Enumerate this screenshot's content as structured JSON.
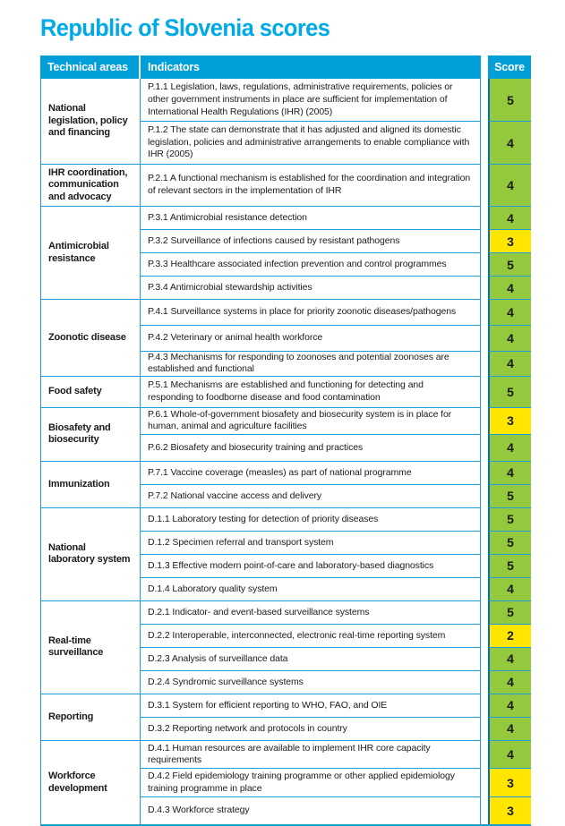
{
  "title": "Republic of Slovenia scores",
  "colors": {
    "title": "#00AAE7",
    "header_bg": "#009FD9",
    "border_cyan": "#1E9CD7",
    "score_border": "#0071BC",
    "green": "#94C83D",
    "yellow": "#FFE500"
  },
  "table": {
    "headers": {
      "technical_areas": "Technical areas",
      "indicators": "Indicators",
      "score": "Score"
    },
    "groups": [
      {
        "area": "National legislation, policy and financing",
        "rows": [
          {
            "indicator": "P.1.1 Legislation, laws, regulations, administrative requirements, policies or other government instruments in place are sufficient for implementation of International Health Regulations (IHR) (2005)",
            "score": "5",
            "level": "green"
          },
          {
            "indicator": "P.1.2 The state can demonstrate that it has adjusted and aligned its domestic legislation, policies and administrative arrangements to enable compliance with IHR (2005)",
            "score": "4",
            "level": "green"
          }
        ]
      },
      {
        "area": "IHR coordination, communication and advocacy",
        "rows": [
          {
            "indicator": "P.2.1 A functional mechanism is established for the coordination and integration of relevant sectors in the implementation of IHR",
            "score": "4",
            "level": "green"
          }
        ]
      },
      {
        "area": "Antimicrobial resistance",
        "rows": [
          {
            "indicator": "P.3.1 Antimicrobial resistance detection",
            "score": "4",
            "level": "green"
          },
          {
            "indicator": "P.3.2 Surveillance of infections caused by resistant pathogens",
            "score": "3",
            "level": "yellow"
          },
          {
            "indicator": "P.3.3 Healthcare associated infection prevention and control programmes",
            "score": "5",
            "level": "green"
          },
          {
            "indicator": "P.3.4 Antimicrobial stewardship activities",
            "score": "4",
            "level": "green"
          }
        ]
      },
      {
        "area": "Zoonotic disease",
        "rows": [
          {
            "indicator": "P.4.1 Surveillance systems in place for priority zoonotic diseases/pathogens",
            "score": "4",
            "level": "green"
          },
          {
            "indicator": "P.4.2 Veterinary or animal health workforce",
            "score": "4",
            "level": "green"
          },
          {
            "indicator": "P.4.3 Mechanisms for responding to zoonoses and potential zoonoses are established and functional",
            "score": "4",
            "level": "green"
          }
        ]
      },
      {
        "area": "Food safety",
        "rows": [
          {
            "indicator": "P.5.1 Mechanisms are established and functioning for detecting and responding to foodborne disease and food contamination",
            "score": "5",
            "level": "green"
          }
        ]
      },
      {
        "area": "Biosafety and biosecurity",
        "rows": [
          {
            "indicator": "P.6.1 Whole-of-government biosafety and biosecurity system is in place for human, animal and agriculture facilities",
            "score": "3",
            "level": "yellow"
          },
          {
            "indicator": "P.6.2 Biosafety and biosecurity training and practices",
            "score": "4",
            "level": "green"
          }
        ]
      },
      {
        "area": "Immunization",
        "rows": [
          {
            "indicator": "P.7.1 Vaccine coverage (measles) as part of national programme",
            "score": "4",
            "level": "green"
          },
          {
            "indicator": "P.7.2 National vaccine access and delivery",
            "score": "5",
            "level": "green"
          }
        ]
      },
      {
        "area": "National laboratory system",
        "rows": [
          {
            "indicator": "D.1.1 Laboratory testing for detection of priority diseases",
            "score": "5",
            "level": "green"
          },
          {
            "indicator": "D.1.2 Specimen referral and transport system",
            "score": "5",
            "level": "green"
          },
          {
            "indicator": "D.1.3 Effective modern point-of-care and laboratory-based diagnostics",
            "score": "5",
            "level": "green"
          },
          {
            "indicator": "D.1.4 Laboratory quality system",
            "score": "4",
            "level": "green"
          }
        ]
      },
      {
        "area": "Real-time surveillance",
        "rows": [
          {
            "indicator": "D.2.1 Indicator- and event-based surveillance systems",
            "score": "5",
            "level": "green"
          },
          {
            "indicator": "D.2.2 Interoperable, interconnected, electronic real-time reporting system",
            "score": "2",
            "level": "yellow"
          },
          {
            "indicator": "D.2.3 Analysis of surveillance data",
            "score": "4",
            "level": "green"
          },
          {
            "indicator": "D.2.4 Syndromic surveillance systems",
            "score": "4",
            "level": "green"
          }
        ]
      },
      {
        "area": "Reporting",
        "rows": [
          {
            "indicator": "D.3.1 System for efficient reporting to WHO, FAO, and OIE",
            "score": "4",
            "level": "green"
          },
          {
            "indicator": "D.3.2 Reporting network and protocols in country",
            "score": "4",
            "level": "green"
          }
        ]
      },
      {
        "area": "Workforce development",
        "rows": [
          {
            "indicator": "D.4.1 Human resources are available to implement IHR core capacity requirements",
            "score": "4",
            "level": "green"
          },
          {
            "indicator": "D.4.2 Field epidemiology training programme or other applied epidemiology training programme in place",
            "score": "3",
            "level": "yellow"
          },
          {
            "indicator": "D.4.3 Workforce strategy",
            "score": "3",
            "level": "yellow"
          }
        ]
      }
    ]
  }
}
